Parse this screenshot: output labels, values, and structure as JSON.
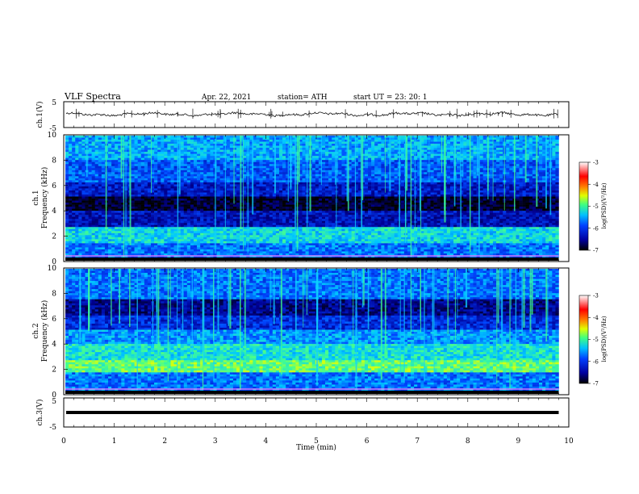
{
  "header": {
    "title": "VLF  Spectra",
    "date": "Apr. 22, 2021",
    "station": "station= ATH",
    "start": "start  UT  =    23: 20: 1"
  },
  "colors": {
    "spec_scale": [
      "#000000",
      "#000090",
      "#0000ff",
      "#0080ff",
      "#00e0ff",
      "#40ff80",
      "#ffff00",
      "#ff8000",
      "#ff0000",
      "#ffffff"
    ]
  },
  "chart_data": [
    {
      "type": "line",
      "panel": "ch1-waveform",
      "ylabel": "ch.1(V)",
      "ylim": [
        -5,
        5
      ],
      "yticks": [
        "5",
        "-5"
      ],
      "xlim": [
        0,
        10
      ],
      "series": [
        {
          "trace": "approximately constant near -0.5 V with small noise and sparse spikes"
        }
      ]
    },
    {
      "type": "heatmap",
      "panel": "ch1-spectrogram",
      "ylabel_top": "ch.1",
      "ylabel": "Frequency (kHz)",
      "ylim": [
        0,
        10
      ],
      "yticks": [
        "0",
        "2",
        "4",
        "6",
        "8",
        "10"
      ],
      "xlim": [
        0,
        9.8
      ],
      "colorbar": {
        "label": "log(PSD)(V²/Hz)",
        "range": [
          -7,
          -3
        ],
        "ticks": [
          "-3",
          "-4",
          "-5",
          "-6",
          "-7"
        ]
      }
    },
    {
      "type": "heatmap",
      "panel": "ch2-spectrogram",
      "ylabel_top": "ch.2",
      "ylabel": "Frequency (kHz)",
      "ylim": [
        0,
        10
      ],
      "yticks": [
        "0",
        "2",
        "4",
        "6",
        "8",
        "10"
      ],
      "xlim": [
        0,
        9.8
      ],
      "colorbar": {
        "label": "log(PSD)(V²/Hz)",
        "range": [
          -7,
          -3
        ],
        "ticks": [
          "-3",
          "-4",
          "-5",
          "-6",
          "-7"
        ]
      }
    },
    {
      "type": "line",
      "panel": "ch3-waveform",
      "ylabel": "ch.3(V)",
      "ylim": [
        -5,
        5
      ],
      "yticks": [
        "5",
        "-5"
      ],
      "xlim": [
        0,
        10
      ],
      "series": [
        {
          "trace": "flat line at approximately -1 V"
        }
      ]
    }
  ],
  "xaxis": {
    "label": "Time  (min)",
    "ticks": [
      "0",
      "1",
      "2",
      "3",
      "4",
      "5",
      "6",
      "7",
      "8",
      "9",
      "10"
    ]
  }
}
